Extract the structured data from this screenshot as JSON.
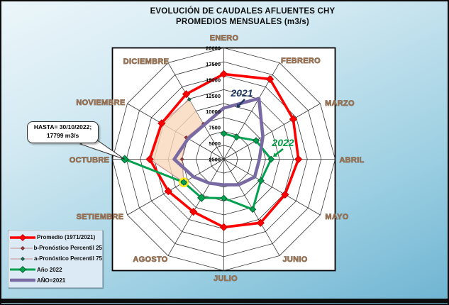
{
  "title": {
    "line1": "EVOLUCIÓN DE CAUDALES AFLUENTES CHY",
    "line2": "PROMEDIOS MENSUALES (m3/s)"
  },
  "chart_data": {
    "type": "radar",
    "categories": [
      "ENERO",
      "FEBRERO",
      "MARZO",
      "ABRIL",
      "MAYO",
      "JUNIO",
      "JULIO",
      "AGOSTO",
      "SETIEMBRE",
      "OCTUBRE",
      "NOVIEMBRE",
      "DICIEMBRE"
    ],
    "axis": {
      "min": 0,
      "max": 20000,
      "step": 2500,
      "tick_labels": [
        "20000",
        "17500",
        "15000",
        "12500",
        "10000",
        "7500",
        "5000",
        "2500"
      ],
      "rings": 8,
      "grid": true
    },
    "series": [
      {
        "name": "Promedio (1971/2021)",
        "color": "#FF0000",
        "line_width": 3.6,
        "marker": "diamond",
        "marker_size": 5,
        "marker_color": "#FF0000",
        "marker_stroke": "#C00000",
        "closed": true,
        "start_month": 0,
        "values": [
          15300,
          16600,
          14400,
          13400,
          12700,
          13200,
          12200,
          10900,
          11500,
          13300,
          12900,
          13500
        ]
      },
      {
        "name": "b-Pronóstico Percentil 25",
        "color": "#C4908E",
        "line_width": 1.1,
        "marker": "dot",
        "marker_size": 2.3,
        "marker_color": "#9E3B3B",
        "marker_stroke": "#6E2323",
        "closed": false,
        "start_month": 8,
        "values": [
          8300,
          7500,
          7800,
          7300
        ]
      },
      {
        "name": "a-Pronóstico Percentil 75",
        "color": "#C4908E",
        "line_width": 1.1,
        "marker": "dot",
        "marker_size": 2.3,
        "marker_color": "#17735F",
        "marker_stroke": "#0D4A3C",
        "closed": false,
        "start_month": 8,
        "values": [
          8300,
          13300,
          12900,
          12400
        ]
      },
      {
        "name": "Año 2022",
        "color": "#00A14E",
        "line_width": 3,
        "marker": "diamond",
        "marker_size": 4.3,
        "marker_color": "#00A14E",
        "marker_stroke": "#005E2D",
        "closed": false,
        "start_month": 0,
        "values": [
          4600,
          4600,
          6700,
          8500,
          7700,
          10400,
          7000,
          8000,
          8300,
          17799
        ]
      },
      {
        "name": "AÑO=2021",
        "color": "#796AA3",
        "line_width": 4.6,
        "marker": "none",
        "marker_size": 0,
        "marker_color": "#796AA3",
        "marker_stroke": "#796AA3",
        "closed": true,
        "start_month": 0,
        "values": [
          9200,
          12600,
          8100,
          6400,
          6400,
          5300,
          4600,
          5000,
          6300,
          8900,
          7400,
          7100
        ]
      }
    ],
    "forecast_band": {
      "lower_series": 1,
      "upper_series": 2,
      "color": "#F9D7BA",
      "opacity": 0.78
    },
    "highlight_point": {
      "series": 3,
      "month_index": 8,
      "ring_color": "#FFE800"
    },
    "year_labels": [
      {
        "text": "2021",
        "color": "#1F3864"
      },
      {
        "text": "2022",
        "color": "#009944"
      }
    ]
  },
  "annotation": {
    "line1": "HASTA= 30/10/2022;",
    "line2": "17799 m3/s"
  },
  "legend": {
    "items": [
      "Promedio (1971/2021)",
      "b-Pronóstico Percentil 25",
      "a-Pronóstico Percentil 75",
      "Año 2022",
      "AÑO=2021"
    ]
  }
}
